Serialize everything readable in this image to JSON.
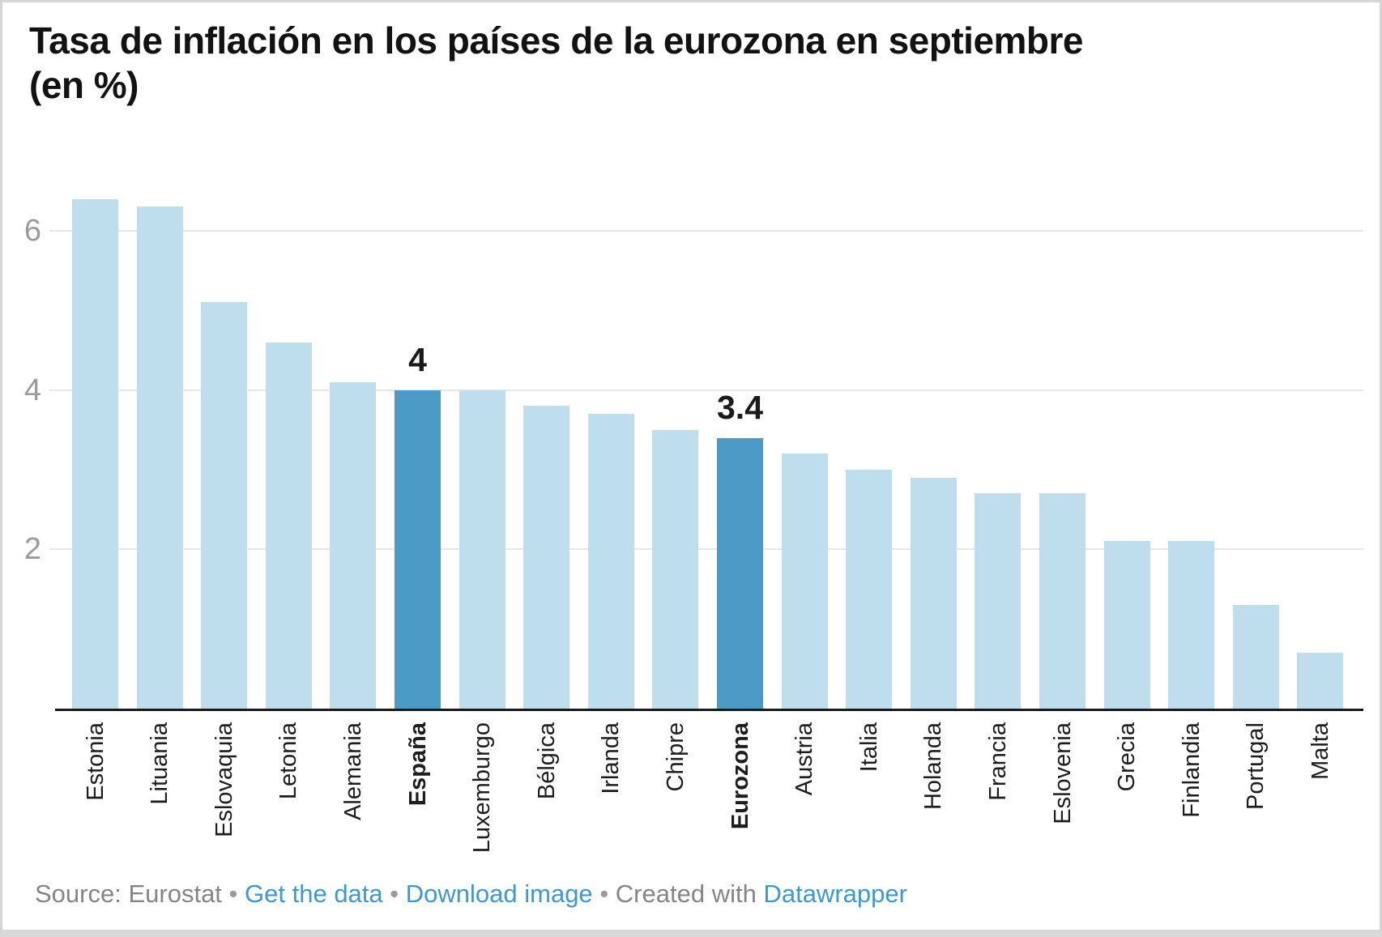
{
  "header": {
    "line1": "Tasa de inflación en los países de la eurozona en septiembre",
    "line2": "(en %)"
  },
  "chart_data": {
    "type": "bar",
    "title": "Tasa de inflación en los países de la eurozona en septiembre (en %)",
    "xlabel": "",
    "ylabel": "",
    "unit": "%",
    "categories": [
      "Estonia",
      "Lituania",
      "Eslovaquia",
      "Letonia",
      "Alemania",
      "España",
      "Luxemburgo",
      "Bélgica",
      "Irlanda",
      "Chipre",
      "Eurozona",
      "Austria",
      "Italia",
      "Holanda",
      "Francia",
      "Eslovenia",
      "Grecia",
      "Finlandia",
      "Portugal",
      "Malta"
    ],
    "values": [
      6.4,
      6.3,
      5.1,
      4.6,
      4.1,
      4,
      4,
      3.8,
      3.7,
      3.5,
      3.4,
      3.2,
      3,
      2.9,
      2.7,
      2.7,
      2.1,
      2.1,
      1.3,
      0.7
    ],
    "highlighted_categories": [
      "España",
      "Eurozona"
    ],
    "data_labels": [
      {
        "category": "España",
        "text": "4"
      },
      {
        "category": "Eurozona",
        "text": "3.4"
      }
    ],
    "yticks": [
      2,
      4,
      6
    ],
    "ylim": [
      0,
      6.63
    ],
    "grid": "horizontal",
    "legend": "none",
    "colors": {
      "bar": "#BEDEEE",
      "highlight": "#4C9BC7",
      "gridline": "#e6e6e6",
      "axis": "#1a1a1a",
      "tick_label": "#9b9b9b",
      "link": "#3e98d4",
      "footer_text": "#858585"
    }
  },
  "footer": {
    "source_label": "Source:",
    "source": "Eurostat",
    "separator": "•",
    "get_data_link": "Get the data",
    "download_link": "Download image",
    "created_with": "Created with",
    "tool_link": "Datawrapper"
  }
}
